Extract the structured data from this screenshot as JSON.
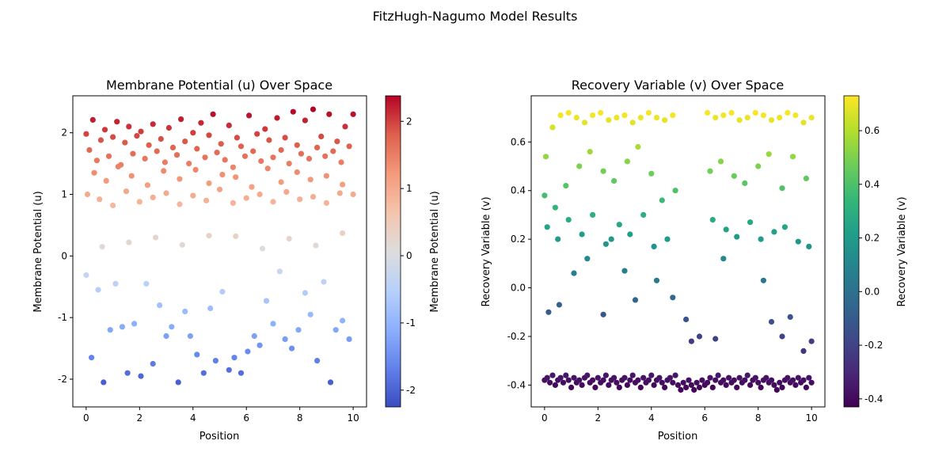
{
  "figure_title": "FitzHugh-Nagumo Model Results",
  "chart_data": [
    {
      "type": "scatter",
      "title": "Membrane Potential (u) Over Space",
      "xlabel": "Position",
      "ylabel": "Membrane Potential (u)",
      "xlim": [
        -0.5,
        10.5
      ],
      "ylim": [
        -2.45,
        2.6
      ],
      "xticks": [
        0,
        2,
        4,
        6,
        8,
        10
      ],
      "yticks": [
        -2,
        -1,
        0,
        1,
        2
      ],
      "colormap": "coolwarm",
      "colorbar": {
        "label": "Membrane Potential (u)",
        "min": -2.25,
        "max": 2.38,
        "ticks": [
          -2,
          -1,
          0,
          1,
          2
        ]
      },
      "grid": false,
      "x": [
        0.0,
        0.12,
        0.25,
        0.4,
        0.55,
        0.7,
        0.85,
        1.0,
        1.15,
        1.3,
        1.45,
        1.6,
        1.75,
        1.9,
        2.05,
        2.2,
        2.35,
        2.5,
        2.65,
        2.8,
        2.95,
        3.1,
        3.25,
        3.4,
        3.55,
        3.7,
        3.85,
        4.0,
        4.15,
        4.3,
        4.45,
        4.6,
        4.75,
        4.9,
        5.05,
        5.2,
        5.35,
        5.5,
        5.65,
        5.8,
        5.95,
        6.1,
        6.25,
        6.4,
        6.55,
        6.7,
        6.85,
        7.0,
        7.15,
        7.3,
        7.45,
        7.6,
        7.75,
        7.9,
        8.05,
        8.2,
        8.35,
        8.5,
        8.65,
        8.8,
        8.95,
        9.1,
        9.25,
        9.4,
        9.55,
        9.7,
        9.85,
        10.0,
        0.3,
        0.75,
        1.2,
        1.7,
        2.3,
        2.9,
        3.5,
        4.1,
        4.6,
        5.1,
        5.6,
        6.2,
        6.8,
        7.3,
        7.9,
        8.4,
        9.0,
        9.6,
        0.05,
        0.5,
        1.0,
        1.5,
        2.0,
        2.5,
        3.0,
        3.5,
        4.0,
        4.5,
        5.0,
        5.5,
        6.0,
        6.5,
        7.0,
        7.5,
        8.0,
        8.5,
        9.0,
        9.5,
        10.0,
        0.6,
        1.6,
        2.6,
        3.6,
        4.6,
        5.6,
        6.6,
        7.6,
        8.6,
        9.6,
        0.0,
        0.2,
        0.45,
        0.65,
        0.9,
        1.1,
        1.35,
        1.55,
        1.8,
        2.05,
        2.25,
        2.5,
        2.75,
        3.0,
        3.2,
        3.45,
        3.7,
        3.9,
        4.15,
        4.4,
        4.65,
        4.85,
        5.1,
        5.35,
        5.55,
        5.8,
        6.05,
        6.3,
        6.5,
        6.75,
        7.0,
        7.25,
        7.45,
        7.7,
        7.95,
        8.2,
        8.4,
        8.65,
        8.9,
        9.15,
        9.35,
        9.6,
        9.85
      ],
      "y": [
        1.98,
        1.72,
        2.21,
        1.55,
        1.88,
        2.05,
        1.62,
        1.93,
        2.18,
        1.48,
        1.84,
        2.1,
        1.66,
        1.95,
        2.02,
        1.58,
        1.8,
        2.14,
        1.7,
        1.9,
        1.52,
        2.08,
        1.76,
        1.64,
        2.22,
        1.86,
        1.5,
        2.0,
        1.74,
        2.16,
        1.6,
        1.96,
        2.3,
        1.68,
        1.82,
        1.56,
        2.12,
        1.44,
        1.92,
        1.78,
        1.62,
        2.28,
        1.7,
        1.98,
        1.54,
        2.06,
        1.88,
        1.6,
        2.24,
        1.72,
        1.92,
        1.5,
        2.34,
        1.8,
        1.66,
        2.2,
        1.58,
        2.38,
        1.76,
        1.94,
        1.62,
        2.3,
        1.7,
        1.86,
        1.52,
        2.1,
        1.78,
        2.3,
        1.35,
        1.22,
        1.45,
        1.3,
        1.15,
        1.38,
        1.25,
        1.4,
        1.18,
        1.32,
        1.28,
        1.12,
        1.42,
        1.2,
        1.36,
        1.24,
        1.3,
        1.16,
        1.0,
        0.92,
        0.82,
        1.05,
        0.88,
        0.95,
        1.02,
        0.84,
        0.98,
        0.9,
        1.08,
        0.86,
        0.94,
        1.0,
        0.88,
        1.04,
        0.92,
        0.96,
        0.86,
        1.02,
        1.0,
        0.15,
        0.22,
        0.3,
        0.18,
        0.33,
        0.32,
        0.12,
        0.28,
        0.17,
        0.37,
        -0.31,
        -1.65,
        -0.55,
        -2.05,
        -1.2,
        -0.45,
        -1.15,
        -1.9,
        -1.1,
        -1.95,
        -0.45,
        -1.75,
        -0.8,
        -1.3,
        -1.15,
        -2.05,
        -0.9,
        -1.3,
        -1.6,
        -1.9,
        -0.85,
        -1.7,
        -0.58,
        -1.85,
        -1.65,
        -1.9,
        -1.55,
        -1.3,
        -1.45,
        -0.73,
        -1.1,
        -0.25,
        -1.35,
        -1.5,
        -1.2,
        -0.6,
        -0.95,
        -1.7,
        -0.42,
        -2.05,
        -1.2,
        -1.05,
        -1.35
      ],
      "scatter_points_shown": "approximately 1000 points; representative subset listed"
    },
    {
      "type": "scatter",
      "title": "Recovery Variable (v) Over Space",
      "xlabel": "Position",
      "ylabel": "Recovery Variable (v)",
      "xlim": [
        -0.5,
        10.5
      ],
      "ylim": [
        -0.49,
        0.79
      ],
      "xticks": [
        0,
        2,
        4,
        6,
        8,
        10
      ],
      "yticks": [
        -0.4,
        -0.2,
        0.0,
        0.2,
        0.4,
        0.6
      ],
      "colormap": "viridis",
      "colorbar": {
        "label": "Recovery Variable (v)",
        "min": -0.43,
        "max": 0.73,
        "ticks": [
          -0.4,
          -0.2,
          0.0,
          0.2,
          0.4,
          0.6
        ]
      },
      "grid": false,
      "x": [
        0.0,
        0.1,
        0.2,
        0.3,
        0.4,
        0.5,
        0.6,
        0.7,
        0.8,
        0.9,
        1.0,
        1.1,
        1.2,
        1.3,
        1.4,
        1.5,
        1.6,
        1.7,
        1.8,
        1.9,
        2.0,
        2.1,
        2.2,
        2.3,
        2.4,
        2.5,
        2.6,
        2.7,
        2.8,
        2.9,
        3.0,
        3.1,
        3.2,
        3.3,
        3.4,
        3.5,
        3.6,
        3.7,
        3.8,
        3.9,
        4.0,
        4.1,
        4.2,
        4.3,
        4.4,
        4.5,
        4.6,
        4.7,
        4.8,
        4.9,
        5.0,
        5.1,
        5.2,
        5.3,
        5.4,
        5.5,
        5.6,
        5.7,
        5.8,
        5.9,
        6.0,
        6.1,
        6.2,
        6.3,
        6.4,
        6.5,
        6.6,
        6.7,
        6.8,
        6.9,
        7.0,
        7.1,
        7.2,
        7.3,
        7.4,
        7.5,
        7.6,
        7.7,
        7.8,
        7.9,
        8.0,
        8.1,
        8.2,
        8.3,
        8.4,
        8.5,
        8.6,
        8.7,
        8.8,
        8.9,
        9.0,
        9.1,
        9.2,
        9.3,
        9.4,
        9.5,
        9.6,
        9.7,
        9.8,
        9.9,
        10.0,
        0.05,
        0.3,
        0.6,
        0.9,
        1.2,
        1.5,
        1.8,
        2.1,
        2.4,
        2.7,
        3.0,
        3.3,
        3.6,
        3.9,
        4.2,
        4.5,
        4.8,
        6.1,
        6.4,
        6.7,
        7.0,
        7.3,
        7.6,
        7.9,
        8.2,
        8.5,
        8.8,
        9.1,
        9.4,
        9.7,
        10.0,
        0.0,
        0.4,
        0.8,
        1.3,
        1.7,
        2.2,
        2.6,
        3.1,
        3.5,
        4.0,
        4.4,
        4.9,
        6.2,
        6.6,
        7.1,
        7.5,
        8.0,
        8.4,
        8.9,
        9.3,
        9.8,
        0.1,
        0.5,
        0.9,
        1.4,
        1.8,
        2.3,
        2.8,
        3.2,
        3.7,
        4.1,
        4.6,
        6.3,
        6.8,
        7.2,
        7.7,
        8.1,
        8.6,
        9.0,
        9.5,
        9.9,
        0.15,
        0.55,
        1.1,
        1.6,
        2.2,
        2.5,
        3.0,
        3.4,
        4.2,
        4.8,
        5.3,
        5.5,
        5.8,
        6.4,
        6.7,
        8.2,
        8.5,
        8.9,
        9.2,
        9.7,
        10.0
      ],
      "y": [
        -0.38,
        -0.37,
        -0.39,
        -0.36,
        -0.4,
        -0.38,
        -0.37,
        -0.39,
        -0.36,
        -0.38,
        -0.41,
        -0.37,
        -0.39,
        -0.38,
        -0.4,
        -0.37,
        -0.36,
        -0.39,
        -0.38,
        -0.41,
        -0.37,
        -0.39,
        -0.38,
        -0.36,
        -0.4,
        -0.38,
        -0.37,
        -0.39,
        -0.41,
        -0.38,
        -0.37,
        -0.4,
        -0.38,
        -0.36,
        -0.39,
        -0.38,
        -0.41,
        -0.37,
        -0.39,
        -0.38,
        -0.36,
        -0.4,
        -0.38,
        -0.37,
        -0.39,
        -0.41,
        -0.38,
        -0.37,
        -0.39,
        -0.36,
        -0.4,
        -0.42,
        -0.39,
        -0.41,
        -0.38,
        -0.4,
        -0.42,
        -0.39,
        -0.41,
        -0.38,
        -0.4,
        -0.39,
        -0.37,
        -0.41,
        -0.38,
        -0.36,
        -0.39,
        -0.38,
        -0.4,
        -0.37,
        -0.39,
        -0.38,
        -0.41,
        -0.37,
        -0.39,
        -0.38,
        -0.36,
        -0.4,
        -0.38,
        -0.37,
        -0.39,
        -0.41,
        -0.38,
        -0.37,
        -0.39,
        -0.38,
        -0.4,
        -0.42,
        -0.39,
        -0.41,
        -0.38,
        -0.37,
        -0.39,
        -0.38,
        -0.4,
        -0.37,
        -0.39,
        -0.38,
        -0.41,
        -0.37,
        -0.39,
        0.54,
        0.66,
        0.71,
        0.72,
        0.7,
        0.68,
        0.71,
        0.72,
        0.69,
        0.7,
        0.71,
        0.68,
        0.7,
        0.72,
        0.7,
        0.69,
        0.71,
        0.72,
        0.7,
        0.71,
        0.72,
        0.69,
        0.7,
        0.72,
        0.71,
        0.69,
        0.7,
        0.72,
        0.71,
        0.68,
        0.7,
        0.38,
        0.33,
        0.42,
        0.5,
        0.56,
        0.48,
        0.44,
        0.52,
        0.58,
        0.47,
        0.36,
        0.4,
        0.48,
        0.52,
        0.46,
        0.43,
        0.5,
        0.55,
        0.41,
        0.54,
        0.45,
        0.25,
        0.2,
        0.28,
        0.22,
        0.3,
        0.18,
        0.26,
        0.22,
        0.3,
        0.17,
        0.2,
        0.28,
        0.24,
        0.21,
        0.27,
        0.2,
        0.23,
        0.25,
        0.19,
        0.17,
        -0.1,
        -0.07,
        0.06,
        0.12,
        -0.11,
        0.2,
        0.07,
        -0.05,
        0.03,
        -0.04,
        -0.13,
        -0.22,
        -0.2,
        -0.21,
        0.12,
        0.03,
        -0.14,
        -0.2,
        -0.12,
        -0.26,
        -0.22
      ],
      "scatter_points_shown": "approximately 1000 points; representative subset listed"
    }
  ]
}
